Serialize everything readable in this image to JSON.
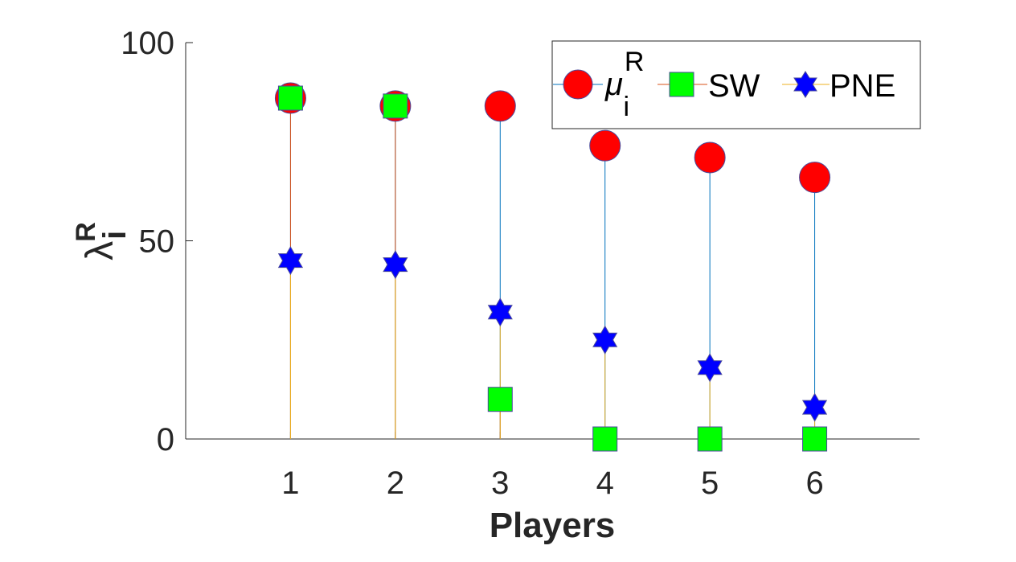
{
  "chart_data": {
    "type": "scatter",
    "xlabel": "Players",
    "ylabel": "λ",
    "ylabel_sup": "R",
    "ylabel_sub": "i",
    "x": [
      1,
      2,
      3,
      4,
      5,
      6
    ],
    "x_ticks": [
      "1",
      "2",
      "3",
      "4",
      "5",
      "6"
    ],
    "xlim": [
      0,
      7
    ],
    "ylim": [
      0,
      100
    ],
    "y_ticks": [
      "0",
      "50",
      "100"
    ],
    "grid": false,
    "legend_position": "top-right",
    "series": [
      {
        "name": "μ",
        "name_sup": "R",
        "name_sub": "i",
        "marker": "circle",
        "color": "#ff0000",
        "stem_color": "#0072bd",
        "values": [
          86,
          84,
          84,
          74,
          71,
          66
        ]
      },
      {
        "name": "SW",
        "marker": "square",
        "color": "#00ff00",
        "stem_color": "#d95319",
        "values": [
          86,
          84,
          10,
          0,
          0,
          0
        ]
      },
      {
        "name": "PNE",
        "marker": "hexagram",
        "color": "#0000ff",
        "stem_color": "#edb120",
        "values": [
          45,
          44,
          32,
          25,
          18,
          8
        ]
      }
    ]
  }
}
